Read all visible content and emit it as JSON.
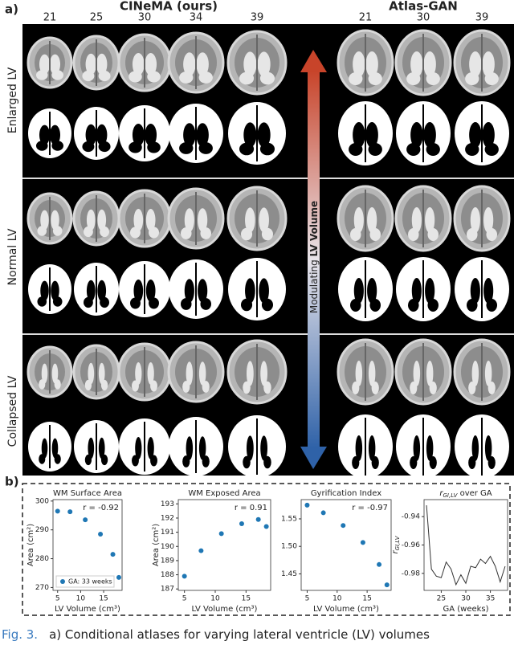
{
  "figure": {
    "panel_a": "a)",
    "panel_b": "b)",
    "left_title": "CINeMA (ours)",
    "right_title": "Atlas-GAN",
    "left_ages": [
      21,
      25,
      30,
      34,
      39
    ],
    "right_ages": [
      21,
      30,
      39
    ],
    "rows": [
      "Enlarged LV",
      "Normal LV",
      "Collapsed LV"
    ],
    "arrow_label": "Modulating ",
    "arrow_label_bold": "LV Volume",
    "caption_label": "Fig. 3.",
    "caption_text": "a) Conditional atlases for varying lateral ventricle (LV) volumes"
  },
  "chart_data": [
    {
      "type": "scatter",
      "title": "WM Surface Area",
      "x_label": "LV Volume (cm³)",
      "y_label": "Area (cm²)",
      "annotation": "r = -0.92",
      "series": [
        {
          "name": "GA: 33 weeks",
          "color": "#1f77b4",
          "x": [
            5,
            7.7,
            11,
            14.3,
            17,
            18.3
          ],
          "values": [
            296.5,
            296.3,
            293.5,
            288.5,
            281.5,
            273.5
          ]
        }
      ],
      "xlim": [
        4,
        19
      ],
      "xticks": [
        5,
        10,
        15
      ],
      "ylim": [
        269,
        300.5
      ],
      "yticks": [
        270,
        280,
        290,
        300
      ]
    },
    {
      "type": "scatter",
      "title": "WM Exposed Area",
      "x_label": "LV Volume (cm³)",
      "y_label": "Area (cm²)",
      "annotation": "r = 0.91",
      "series": [
        {
          "color": "#1f77b4",
          "x": [
            5,
            7.7,
            11,
            14.3,
            17,
            18.3
          ],
          "values": [
            187.9,
            189.7,
            190.9,
            191.6,
            191.9,
            191.4
          ]
        }
      ],
      "xlim": [
        4,
        19
      ],
      "xticks": [
        5,
        10,
        15
      ],
      "ylim": [
        186.9,
        193.3
      ],
      "yticks": [
        187,
        188,
        189,
        190,
        191,
        192,
        193
      ]
    },
    {
      "type": "scatter",
      "title": "Gyrification Index",
      "x_label": "LV Volume (cm³)",
      "annotation": "r = -0.97",
      "series": [
        {
          "color": "#1f77b4",
          "x": [
            5,
            7.7,
            11,
            14.3,
            17,
            18.3
          ],
          "values": [
            1.575,
            1.561,
            1.538,
            1.507,
            1.467,
            1.43
          ]
        }
      ],
      "xlim": [
        4,
        19
      ],
      "xticks": [
        5,
        10,
        15
      ],
      "ylim": [
        1.42,
        1.585
      ],
      "yticks": [
        {
          "value": 1.45,
          "label": "1.45"
        },
        {
          "value": 1.5,
          "label": "1.50"
        },
        {
          "value": 1.55,
          "label": "1.55"
        }
      ]
    },
    {
      "type": "line",
      "title_symbol": "r",
      "title_subscript": "GI,LV",
      "title_suffix": " over GA",
      "x_label": "GA (weeks)",
      "y_label_symbol": "r",
      "y_label_subscript": "GI,LV",
      "series": [
        {
          "color": "#333333",
          "x": [
            22,
            23,
            24,
            25,
            26,
            27,
            28,
            29,
            30,
            31,
            32,
            33,
            34,
            35,
            36,
            37,
            38
          ],
          "values": [
            -0.932,
            -0.977,
            -0.982,
            -0.983,
            -0.972,
            -0.977,
            -0.988,
            -0.981,
            -0.987,
            -0.975,
            -0.976,
            -0.97,
            -0.973,
            -0.968,
            -0.975,
            -0.986,
            -0.975
          ]
        }
      ],
      "xlim": [
        21.5,
        38.5
      ],
      "xticks": [
        25,
        30,
        35
      ],
      "ylim": [
        -0.992,
        -0.928
      ],
      "yticks": [
        -0.94,
        -0.96,
        -0.98
      ]
    }
  ]
}
